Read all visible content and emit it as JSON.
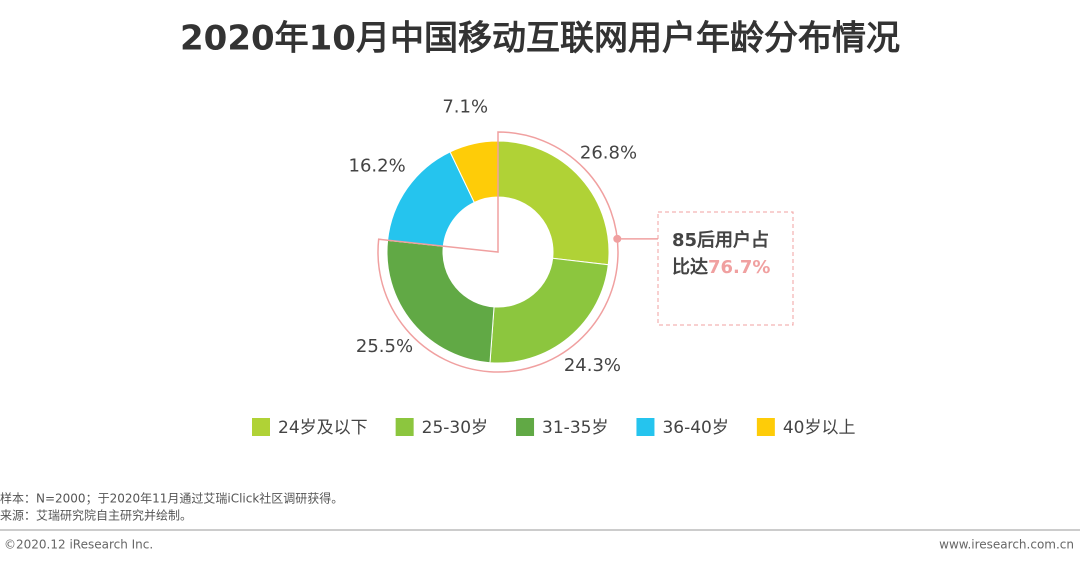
{
  "chart_data": {
    "type": "donut",
    "title": "2020年10月中国移动互联网用户年龄分布情况",
    "categories": [
      "24岁及以下",
      "25-30岁",
      "31-35岁",
      "36-40岁",
      "40岁以上"
    ],
    "values": [
      26.8,
      24.3,
      25.5,
      16.2,
      7.1
    ],
    "value_labels": [
      "26.8%",
      "24.3%",
      "25.5%",
      "16.2%",
      "7.1%"
    ],
    "colors": [
      "#b0d236",
      "#8cc63e",
      "#61a945",
      "#25c4ee",
      "#fecc08"
    ],
    "annotation_lines": [
      "85后用户占",
      "比达"
    ],
    "annotation_value": {
      "value": 76.7,
      "label": "76.7%"
    },
    "highlight_color": "#f0a0a0"
  },
  "notes": [
    "样本：N=2000；于2020年11月通过艾瑞iClick社区调研获得。",
    "来源：艾瑞研究院自主研究并绘制。"
  ],
  "footer": {
    "left": "©2020.12 iResearch Inc.",
    "right": "www.iresearch.com.cn"
  }
}
